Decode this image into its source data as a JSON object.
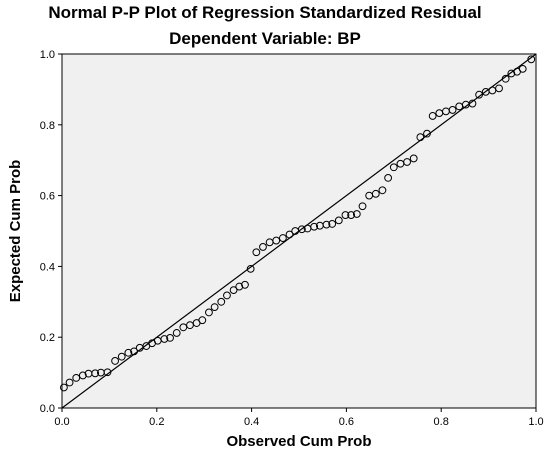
{
  "chart_data": {
    "type": "scatter",
    "title": "Normal P-P Plot of Regression Standardized Residual",
    "subtitle": "Dependent Variable: BP",
    "xlabel": "Observed Cum Prob",
    "ylabel": "Expected Cum Prob",
    "xlim": [
      0.0,
      1.0
    ],
    "ylim": [
      0.0,
      1.0
    ],
    "x_ticks": [
      "0.0",
      "0.2",
      "0.4",
      "0.6",
      "0.8",
      "1.0"
    ],
    "y_ticks": [
      "0.0",
      "0.2",
      "0.4",
      "0.6",
      "0.8",
      "1.0"
    ],
    "grid": false,
    "reference_line": [
      [
        0,
        0
      ],
      [
        1,
        1
      ]
    ],
    "colors": {
      "plot_background": "#F0F0F0",
      "points": "#000000",
      "line": "#000000"
    },
    "points": [
      [
        0.004,
        0.058
      ],
      [
        0.016,
        0.072
      ],
      [
        0.03,
        0.085
      ],
      [
        0.044,
        0.092
      ],
      [
        0.056,
        0.097
      ],
      [
        0.07,
        0.098
      ],
      [
        0.082,
        0.1
      ],
      [
        0.096,
        0.101
      ],
      [
        0.112,
        0.133
      ],
      [
        0.126,
        0.145
      ],
      [
        0.14,
        0.156
      ],
      [
        0.152,
        0.16
      ],
      [
        0.164,
        0.17
      ],
      [
        0.178,
        0.175
      ],
      [
        0.19,
        0.183
      ],
      [
        0.202,
        0.19
      ],
      [
        0.216,
        0.195
      ],
      [
        0.228,
        0.198
      ],
      [
        0.242,
        0.212
      ],
      [
        0.256,
        0.228
      ],
      [
        0.27,
        0.234
      ],
      [
        0.284,
        0.24
      ],
      [
        0.296,
        0.248
      ],
      [
        0.31,
        0.27
      ],
      [
        0.322,
        0.285
      ],
      [
        0.336,
        0.3
      ],
      [
        0.348,
        0.318
      ],
      [
        0.362,
        0.333
      ],
      [
        0.374,
        0.343
      ],
      [
        0.386,
        0.348
      ],
      [
        0.398,
        0.393
      ],
      [
        0.41,
        0.44
      ],
      [
        0.424,
        0.455
      ],
      [
        0.438,
        0.468
      ],
      [
        0.452,
        0.473
      ],
      [
        0.466,
        0.48
      ],
      [
        0.48,
        0.49
      ],
      [
        0.492,
        0.5
      ],
      [
        0.506,
        0.505
      ],
      [
        0.518,
        0.507
      ],
      [
        0.532,
        0.512
      ],
      [
        0.544,
        0.515
      ],
      [
        0.558,
        0.518
      ],
      [
        0.57,
        0.52
      ],
      [
        0.584,
        0.53
      ],
      [
        0.598,
        0.545
      ],
      [
        0.61,
        0.545
      ],
      [
        0.622,
        0.548
      ],
      [
        0.634,
        0.57
      ],
      [
        0.648,
        0.6
      ],
      [
        0.662,
        0.605
      ],
      [
        0.676,
        0.615
      ],
      [
        0.688,
        0.65
      ],
      [
        0.7,
        0.68
      ],
      [
        0.714,
        0.69
      ],
      [
        0.728,
        0.695
      ],
      [
        0.742,
        0.705
      ],
      [
        0.756,
        0.765
      ],
      [
        0.77,
        0.775
      ],
      [
        0.782,
        0.825
      ],
      [
        0.796,
        0.833
      ],
      [
        0.81,
        0.838
      ],
      [
        0.824,
        0.842
      ],
      [
        0.838,
        0.852
      ],
      [
        0.852,
        0.857
      ],
      [
        0.866,
        0.86
      ],
      [
        0.88,
        0.885
      ],
      [
        0.894,
        0.893
      ],
      [
        0.908,
        0.897
      ],
      [
        0.922,
        0.903
      ],
      [
        0.936,
        0.93
      ],
      [
        0.948,
        0.945
      ],
      [
        0.96,
        0.95
      ],
      [
        0.972,
        0.958
      ],
      [
        0.99,
        0.985
      ]
    ]
  }
}
